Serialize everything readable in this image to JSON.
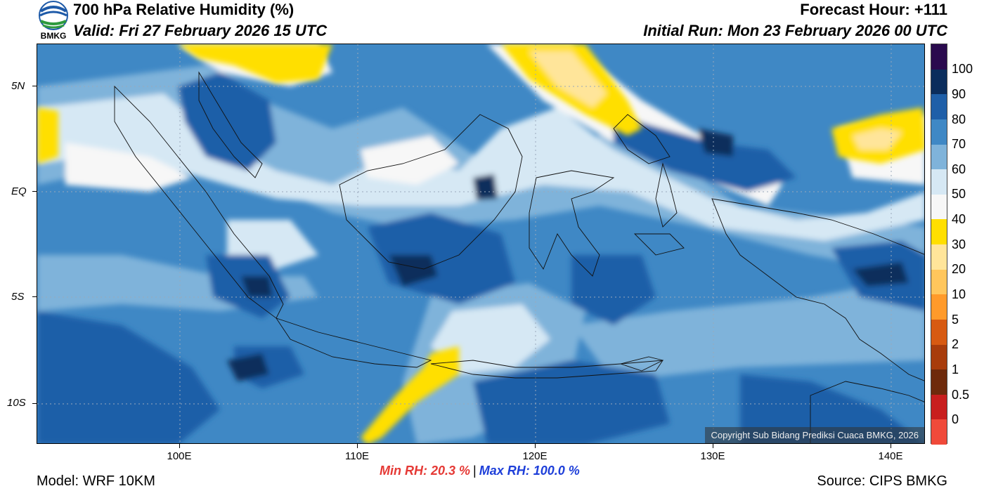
{
  "header": {
    "title": "700 hPa Relative Humidity (%)",
    "valid": "Valid: Fri 27 February 2026 15 UTC",
    "forecast_hour": "Forecast Hour: +111",
    "initial_run": "Initial Run: Mon 23 February 2026 00 UTC",
    "logo_text": "BMKG"
  },
  "map": {
    "lat_labels": [
      "5N",
      "EQ",
      "5S",
      "10S"
    ],
    "lon_labels": [
      "100E",
      "110E",
      "120E",
      "130E",
      "140E"
    ],
    "copyright": "Copyright Sub Bidang Prediksi Cuaca BMKG, 2026"
  },
  "colorbar": {
    "labels": [
      "100",
      "90",
      "80",
      "70",
      "60",
      "50",
      "40",
      "30",
      "20",
      "10",
      "5",
      "2",
      "1",
      "0.5",
      "0"
    ],
    "colors": [
      "#2a0a4e",
      "#0b2d5c",
      "#1f5fa8",
      "#3f88c5",
      "#7fb3da",
      "#d6e8f4",
      "#f7f7f7",
      "#ffdf00",
      "#ffe59a",
      "#ffc65c",
      "#ff9a2a",
      "#d75a12",
      "#a83c0c",
      "#6e2a0c",
      "#c81e1e",
      "#f04a3a"
    ]
  },
  "stats": {
    "min_rh": "Min RH:  20.3 %",
    "separator": "|",
    "max_rh": "Max RH: 100.0 %"
  },
  "footer": {
    "model": "Model: WRF 10KM",
    "source": "Source: CIPS BMKG"
  }
}
